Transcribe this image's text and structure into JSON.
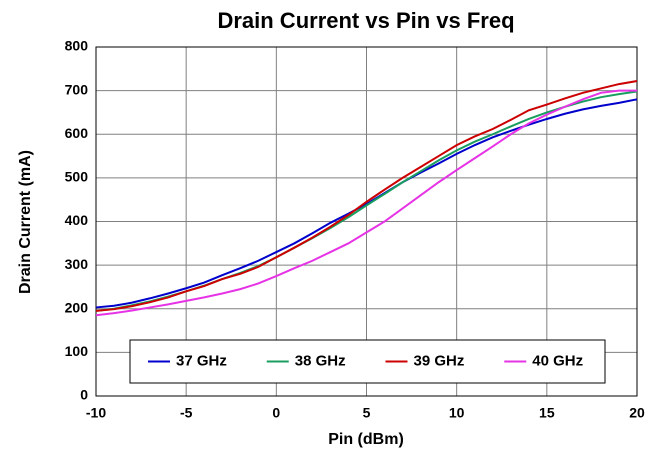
{
  "chart_data": {
    "type": "line",
    "title": "Drain Current vs Pin vs Freq",
    "x_label": "Pin (dBm)",
    "y_label": "Drain Current (mA)",
    "x": [
      -10,
      -9,
      -8,
      -7,
      -6,
      -5,
      -4,
      -3,
      -2,
      -1,
      0,
      1,
      2,
      3,
      4,
      5,
      6,
      7,
      8,
      9,
      10,
      11,
      12,
      13,
      14,
      15,
      16,
      17,
      18,
      19,
      20
    ],
    "series": [
      {
        "name": "37 GHz",
        "color": "#0000cc",
        "values": [
          203,
          207,
          214,
          224,
          235,
          247,
          260,
          277,
          293,
          310,
          330,
          350,
          373,
          397,
          418,
          440,
          465,
          490,
          512,
          533,
          555,
          575,
          593,
          608,
          622,
          635,
          647,
          657,
          665,
          672,
          680
        ]
      },
      {
        "name": "38 GHz",
        "color": "#1a9e5f",
        "values": [
          195,
          200,
          208,
          217,
          228,
          240,
          253,
          268,
          282,
          298,
          318,
          340,
          362,
          385,
          410,
          437,
          463,
          490,
          515,
          540,
          563,
          583,
          600,
          618,
          635,
          650,
          663,
          675,
          685,
          692,
          698
        ]
      },
      {
        "name": "39 GHz",
        "color": "#cc0000",
        "values": [
          195,
          199,
          206,
          215,
          226,
          240,
          252,
          268,
          280,
          296,
          318,
          340,
          363,
          388,
          415,
          445,
          473,
          500,
          525,
          550,
          575,
          595,
          612,
          633,
          655,
          668,
          682,
          695,
          705,
          715,
          722
        ]
      },
      {
        "name": "40 GHz",
        "color": "#e633e6",
        "values": [
          185,
          190,
          196,
          203,
          210,
          218,
          226,
          235,
          245,
          258,
          275,
          293,
          310,
          330,
          350,
          375,
          400,
          430,
          460,
          490,
          518,
          545,
          572,
          600,
          625,
          645,
          663,
          680,
          695,
          700,
          700
        ]
      }
    ],
    "xlim": [
      -10,
      20
    ],
    "xticks": [
      -10,
      -5,
      0,
      5,
      10,
      15,
      20
    ],
    "ylim": [
      0,
      800
    ],
    "yticks": [
      0,
      100,
      200,
      300,
      400,
      500,
      600,
      700,
      800
    ],
    "grid": true,
    "legend": "bottom"
  }
}
